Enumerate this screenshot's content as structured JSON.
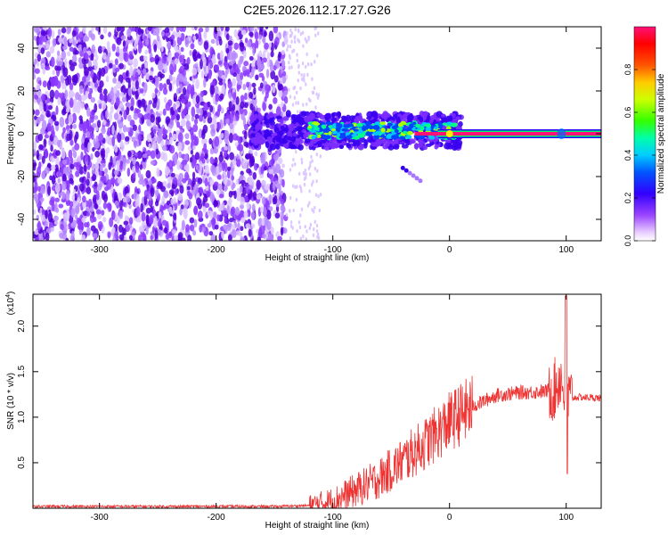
{
  "title": "C2E5.2026.112.17.27.G26",
  "chart_data": [
    {
      "type": "heatmap",
      "xlabel": "Height of straight line (km)",
      "ylabel": "Frequency (Hz)",
      "xlim": [
        -357,
        130
      ],
      "ylim": [
        -50,
        50
      ],
      "xticks": [
        -300,
        -200,
        -100,
        0,
        100
      ],
      "yticks": [
        -40,
        -20,
        0,
        20,
        40
      ],
      "colorbar": {
        "label": "Normalized spectral amplitude",
        "range": [
          0,
          1
        ],
        "ticks": [
          0.0,
          0.2,
          0.4,
          0.6,
          0.8
        ],
        "colors": [
          "#ffffff",
          "#cc99ff",
          "#7700ee",
          "#2200ff",
          "#0099ff",
          "#00ffee",
          "#00ff33",
          "#aaff00",
          "#ffff00",
          "#ff7700",
          "#ff0000",
          "#ff1177"
        ]
      },
      "features": {
        "noise_region_x": [
          -357,
          -140
        ],
        "sparse_noise_region_x": [
          -140,
          -110
        ],
        "signal_band_x": [
          -170,
          10
        ],
        "signal_band_halfwidth_hz": 5,
        "strong_carrier_x": [
          -30,
          130
        ],
        "carrier_frequency_hz": 0,
        "spur_segment": {
          "x": [
            -40,
            -25
          ],
          "y": [
            -16,
            -22
          ]
        }
      }
    },
    {
      "type": "line",
      "xlabel": "Height of straight line (km)",
      "ylabel": "SNR (10 * v/v)",
      "yscale_label": "(x10",
      "yscale_exponent": "4",
      "xlim": [
        -357,
        130
      ],
      "ylim": [
        0,
        2.35
      ],
      "xticks": [
        -300,
        -200,
        -100,
        0,
        100
      ],
      "yticks": [
        0.5,
        1.0,
        1.5,
        2.0
      ],
      "color": "#ee3333",
      "series": [
        {
          "x": [
            -357,
            -300,
            -200,
            -150,
            -120,
            -100,
            -80,
            -60,
            -40,
            -20,
            0,
            20,
            40,
            60,
            80,
            90,
            95,
            100,
            110,
            130
          ],
          "y": [
            0.02,
            0.02,
            0.02,
            0.02,
            0.03,
            0.08,
            0.2,
            0.33,
            0.52,
            0.72,
            0.95,
            1.12,
            1.24,
            1.27,
            1.28,
            1.3,
            1.45,
            1.2,
            1.22,
            1.21
          ]
        }
      ],
      "annotations": [
        {
          "x": 100,
          "y": 2.33,
          "text": "spike"
        },
        {
          "x": 100,
          "y": 0.38,
          "text": "dip"
        }
      ]
    }
  ]
}
